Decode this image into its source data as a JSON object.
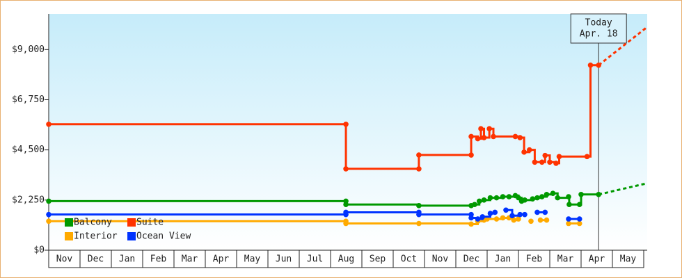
{
  "chart_data": {
    "type": "step",
    "xlim": [
      0,
      19
    ],
    "xticks": [
      {
        "value": 0.5,
        "label": "Nov"
      },
      {
        "value": 1.5,
        "label": "Dec"
      },
      {
        "value": 2.5,
        "label": "Jan"
      },
      {
        "value": 3.5,
        "label": "Feb"
      },
      {
        "value": 4.5,
        "label": "Mar"
      },
      {
        "value": 5.5,
        "label": "Apr"
      },
      {
        "value": 6.5,
        "label": "May"
      },
      {
        "value": 7.5,
        "label": "Jun"
      },
      {
        "value": 8.5,
        "label": "Jul"
      },
      {
        "value": 9.5,
        "label": "Aug"
      },
      {
        "value": 10.5,
        "label": "Sep"
      },
      {
        "value": 11.5,
        "label": "Oct"
      },
      {
        "value": 12.5,
        "label": "Nov"
      },
      {
        "value": 13.5,
        "label": "Dec"
      },
      {
        "value": 14.5,
        "label": "Jan"
      },
      {
        "value": 15.5,
        "label": "Feb"
      },
      {
        "value": 16.5,
        "label": "Mar"
      },
      {
        "value": 17.5,
        "label": "Apr"
      },
      {
        "value": 18.5,
        "label": "May"
      }
    ],
    "ylim": [
      0,
      10600
    ],
    "yticks": [
      {
        "value": 0,
        "label": "$0"
      },
      {
        "value": 2250,
        "label": "$2,250"
      },
      {
        "value": 4500,
        "label": "$4,500"
      },
      {
        "value": 6750,
        "label": "$6,750"
      },
      {
        "value": 9000,
        "label": "$9,000"
      }
    ],
    "legend": "lower left",
    "today": {
      "label": "Today",
      "date": "Apr. 18",
      "x": 17.56
    },
    "series": [
      {
        "name": "Balcony",
        "color": "#009900",
        "x": [
          0,
          9.49,
          9.49,
          11.82,
          13.49,
          13.6,
          13.75,
          13.9,
          14.1,
          14.3,
          14.5,
          14.7,
          14.9,
          15.0,
          15.1,
          15.2,
          15.45,
          15.6,
          15.75,
          15.9,
          16.1,
          16.25,
          16.6,
          16.62,
          16.95,
          17.0,
          17.56
        ],
        "values": [
          2200,
          2200,
          2050,
          2000,
          2000,
          2050,
          2200,
          2250,
          2350,
          2350,
          2400,
          2400,
          2450,
          2350,
          2200,
          2250,
          2300,
          2350,
          2400,
          2500,
          2550,
          2350,
          2400,
          2050,
          2050,
          2500,
          2500
        ],
        "forecast_x": 19.1,
        "forecast": 3000
      },
      {
        "name": "Suite",
        "color": "#ff3300",
        "x": [
          0,
          9.49,
          9.49,
          11.82,
          11.82,
          13.49,
          13.49,
          13.7,
          13.8,
          13.9,
          14.07,
          14.2,
          14.9,
          15.05,
          15.18,
          15.35,
          15.52,
          15.75,
          15.85,
          16.0,
          16.2,
          16.3,
          17.19,
          17.3,
          17.56
        ],
        "values": [
          5650,
          5650,
          3650,
          3650,
          4270,
          4270,
          5100,
          5000,
          5450,
          5050,
          5450,
          5100,
          5100,
          5050,
          4400,
          4500,
          3950,
          3950,
          4250,
          3950,
          3900,
          4200,
          4200,
          8300,
          8300
        ],
        "forecast_x": 19.1,
        "forecast": 10000
      },
      {
        "name": "Interior",
        "color": "#ffaa00",
        "x": [
          0,
          9.49,
          9.49,
          11.82,
          13.49,
          13.7,
          13.9,
          14.0,
          14.3,
          14.5,
          14.7,
          14.85,
          15.0,
          null,
          15.4,
          null,
          15.7,
          15.9,
          null,
          16.6,
          16.95
        ],
        "values": [
          1300,
          1300,
          1200,
          1200,
          1170,
          1300,
          1350,
          1400,
          1400,
          1450,
          1450,
          1350,
          1400,
          null,
          1300,
          null,
          1350,
          1350,
          null,
          1200,
          1200
        ]
      },
      {
        "name": "Ocean View",
        "color": "#0033ff",
        "x": [
          0,
          9.49,
          9.49,
          11.82,
          11.82,
          13.49,
          13.49,
          13.7,
          13.85,
          14.1,
          14.25,
          null,
          14.6,
          14.8,
          15.05,
          15.2,
          null,
          15.6,
          15.85,
          null,
          16.6,
          16.95
        ],
        "values": [
          1600,
          1600,
          1700,
          1700,
          1600,
          1600,
          1450,
          1400,
          1500,
          1650,
          1700,
          null,
          1800,
          1550,
          1600,
          1600,
          null,
          1700,
          1700,
          null,
          1400,
          1400
        ]
      }
    ]
  }
}
